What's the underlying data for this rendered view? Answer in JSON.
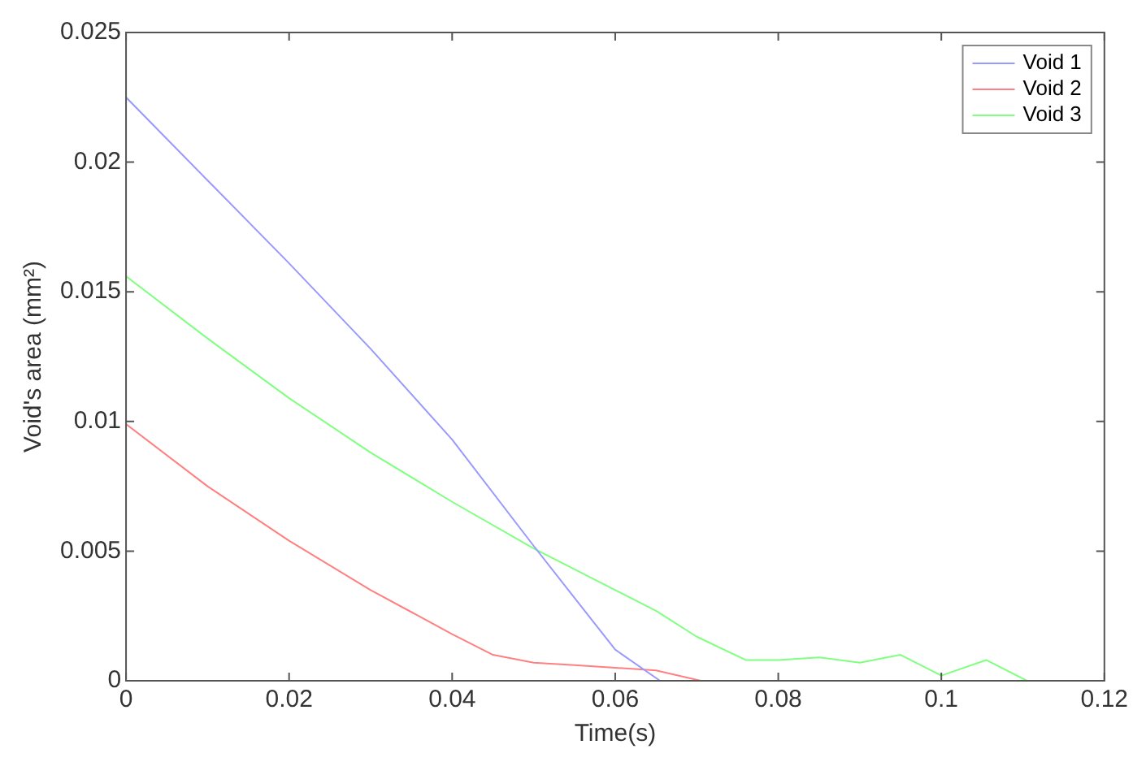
{
  "chart_data": {
    "type": "line",
    "xlabel": "Time(s)",
    "ylabel": "Void's area (mm²)",
    "xlim": [
      0,
      0.12
    ],
    "xticks": [
      0,
      0.02,
      0.04,
      0.06,
      0.08,
      0.1,
      0.12
    ],
    "ylim": [
      0,
      0.025
    ],
    "yticks": [
      0,
      0.005,
      0.01,
      0.015,
      0.02,
      0.025
    ],
    "grid": false,
    "legend": "top right",
    "marker": "none",
    "line_style": "solid",
    "series": [
      {
        "name": "Void 1",
        "color": "#9999ff",
        "x": [
          0,
          0.01,
          0.02,
          0.03,
          0.04,
          0.05,
          0.055,
          0.06,
          0.0655
        ],
        "values": [
          0.0225,
          0.0193,
          0.0161,
          0.0128,
          0.0093,
          0.0052,
          0.0032,
          0.0012,
          0
        ]
      },
      {
        "name": "Void 2",
        "color": "#ff8080",
        "x": [
          0,
          0.01,
          0.02,
          0.03,
          0.04,
          0.045,
          0.05,
          0.055,
          0.06,
          0.065,
          0.0705
        ],
        "values": [
          0.0099,
          0.0075,
          0.0054,
          0.0035,
          0.0018,
          0.001,
          0.0007,
          0.0006,
          0.0005,
          0.0004,
          0
        ]
      },
      {
        "name": "Void 3",
        "color": "#80ff80",
        "x": [
          0,
          0.01,
          0.02,
          0.03,
          0.04,
          0.05,
          0.06,
          0.065,
          0.07,
          0.076,
          0.08,
          0.085,
          0.09,
          0.095,
          0.1,
          0.1055,
          0.1105
        ],
        "values": [
          0.0156,
          0.0132,
          0.0109,
          0.0088,
          0.0069,
          0.0051,
          0.0035,
          0.0027,
          0.0017,
          0.0008,
          0.0008,
          0.0009,
          0.0007,
          0.001,
          0.0002,
          0.0008,
          0
        ]
      }
    ]
  }
}
